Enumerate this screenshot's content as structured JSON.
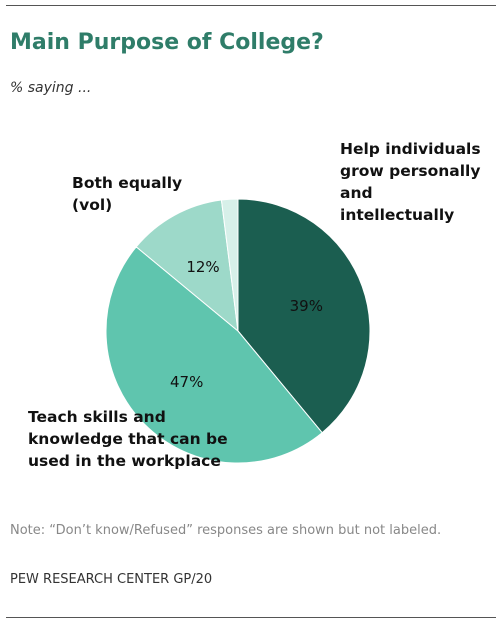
{
  "chart_data": {
    "type": "pie",
    "title": "Main Purpose of College?",
    "subtitle": "% saying ...",
    "categories": [
      "Help individuals grow personally and intellectually",
      "Teach skills and knowledge that can be used in the workplace",
      "Both equally (vol)",
      null
    ],
    "values": [
      39,
      47,
      12,
      2
    ],
    "value_labels": [
      "39%",
      "47%",
      "12%",
      null
    ],
    "colors": [
      "#1b5e50",
      "#5fc5ae",
      "#9dd9c9",
      "#d7f0e9"
    ],
    "note": "Note: “Don’t know/Refused” responses are shown but not labeled.",
    "source": "PEW RESEARCH CENTER GP/20"
  }
}
